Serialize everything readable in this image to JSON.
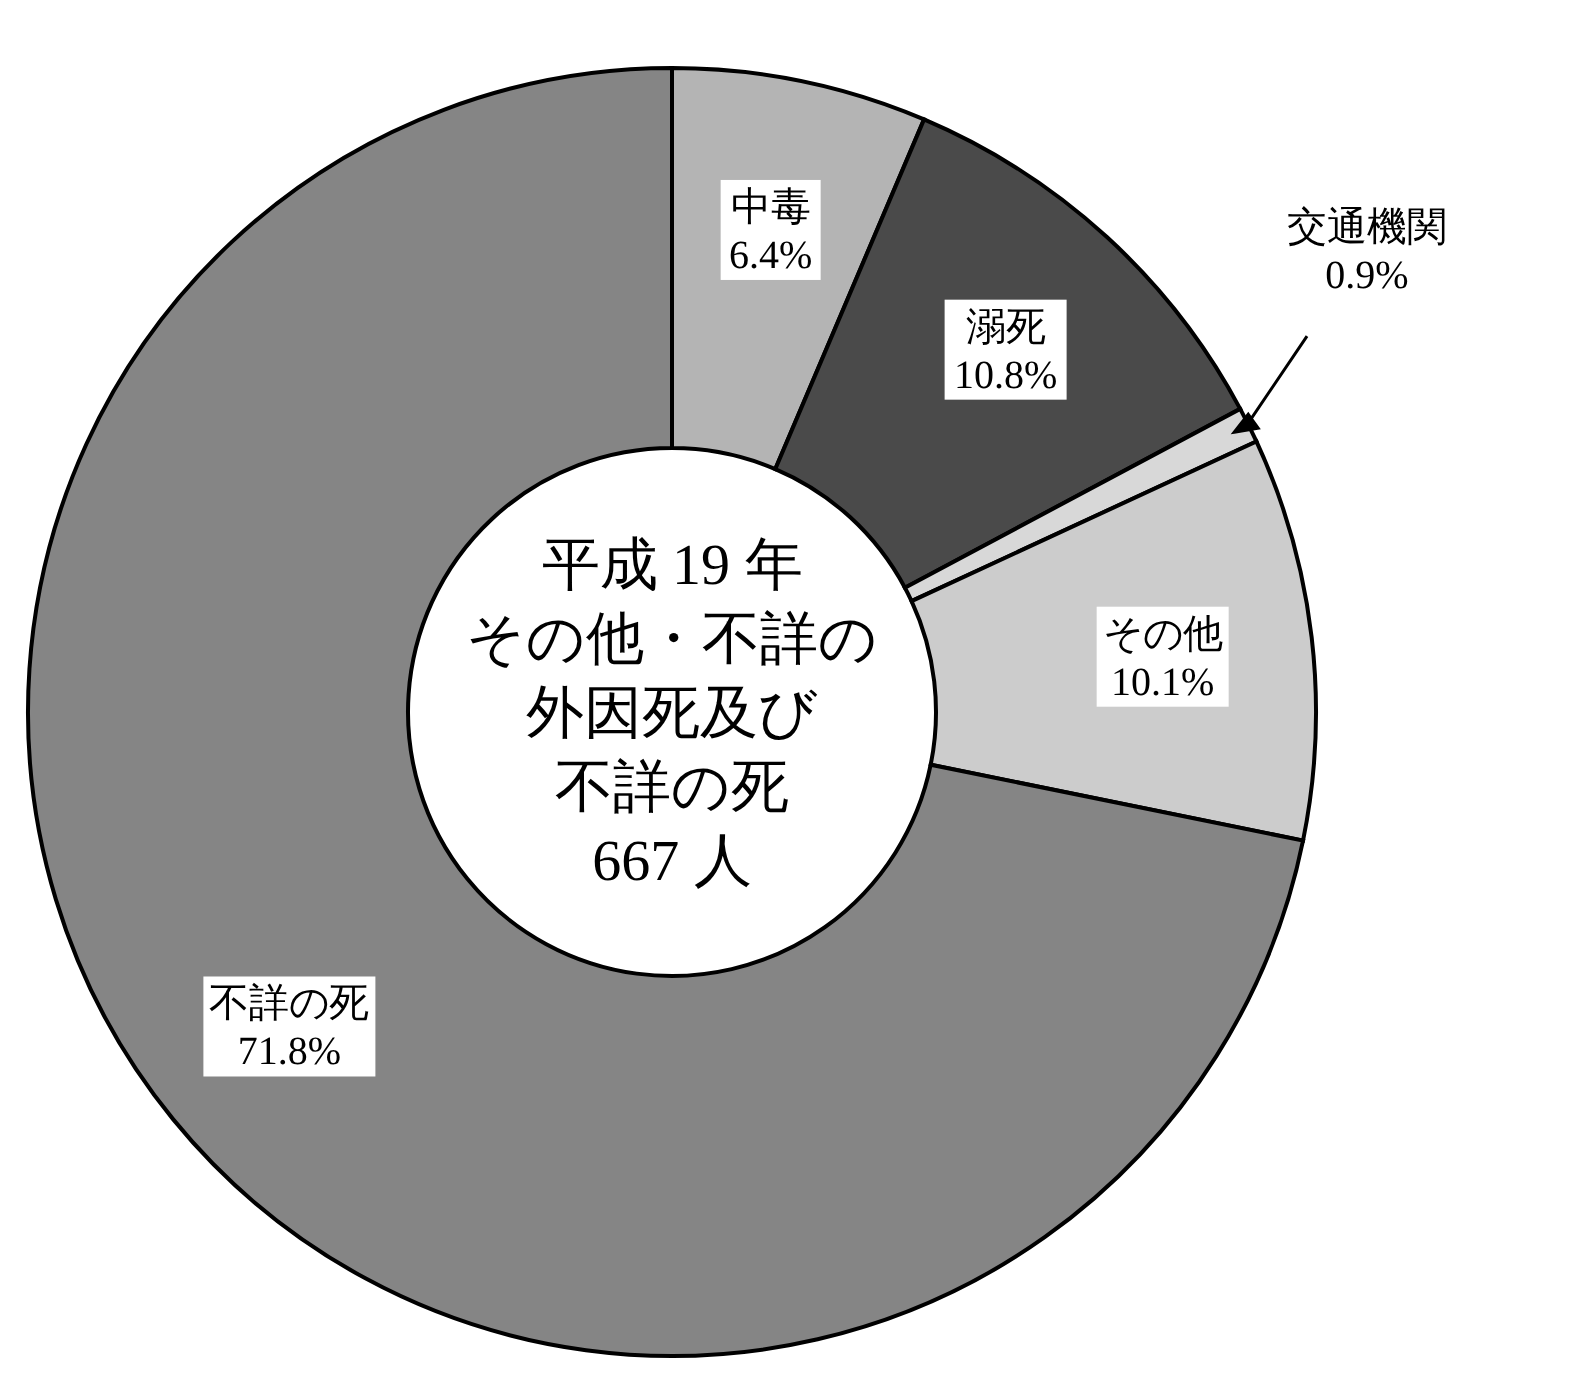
{
  "chart_data": {
    "type": "donut",
    "annotations": [
      "平成 19 年",
      "その他・不詳の",
      "外因死及び",
      "不詳の死",
      "667 人"
    ],
    "categories": [
      "中毒",
      "溺死",
      "交通機関",
      "その他",
      "不詳の死"
    ],
    "values": [
      6.4,
      10.8,
      0.9,
      10.1,
      71.8
    ],
    "value_labels": [
      "6.4%",
      "10.8%",
      "0.9%",
      "10.1%",
      "71.8%"
    ],
    "colors": [
      "#b4b4b4",
      "#4a4a4a",
      "#d8d8d8",
      "#cccccc",
      "#858585"
    ]
  }
}
